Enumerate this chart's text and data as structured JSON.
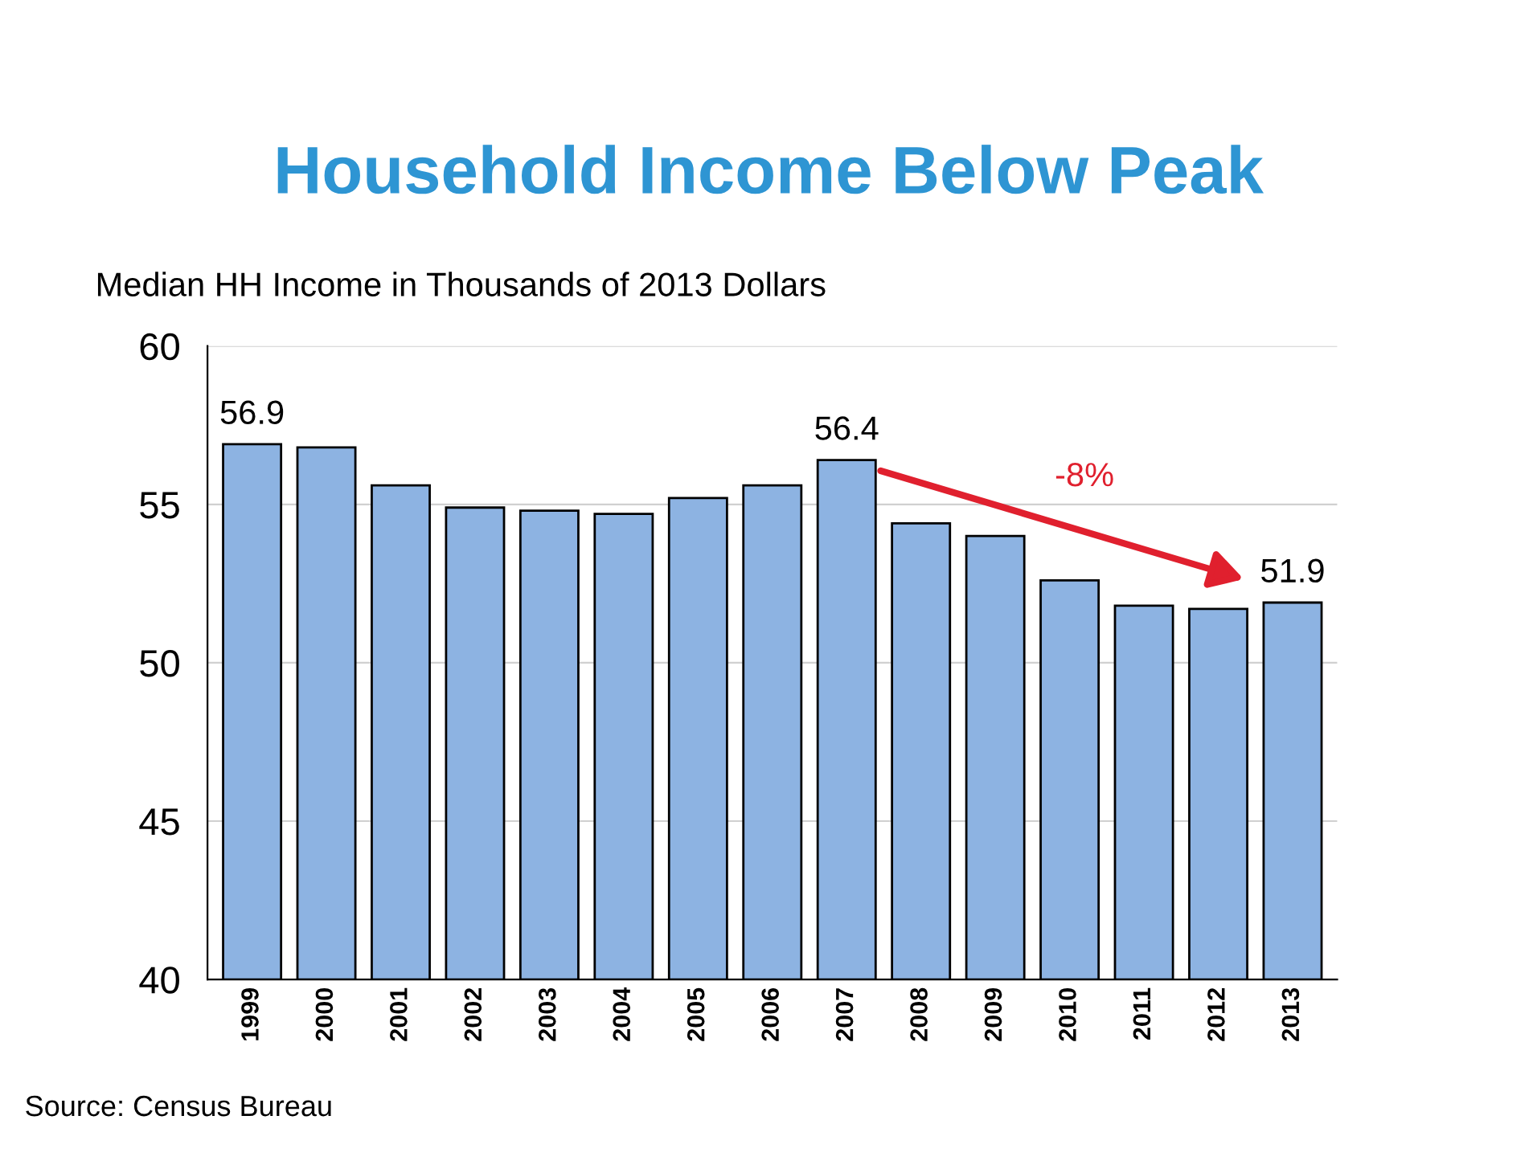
{
  "chart_data": {
    "type": "bar",
    "title": "Household Income Below Peak",
    "ylabel": "Median HH Income in Thousands of 2013 Dollars",
    "categories": [
      "1999",
      "2000",
      "2001",
      "2002",
      "2003",
      "2004",
      "2005",
      "2006",
      "2007",
      "2008",
      "2009",
      "2010",
      "2011",
      "2012",
      "2013"
    ],
    "values": [
      56.9,
      56.8,
      55.6,
      54.9,
      54.8,
      54.7,
      55.2,
      55.6,
      56.4,
      54.4,
      54.0,
      52.6,
      51.8,
      51.7,
      51.9
    ],
    "value_labels": [
      "56.9",
      null,
      null,
      null,
      null,
      null,
      null,
      null,
      "56.4",
      null,
      null,
      null,
      null,
      null,
      "51.9"
    ],
    "color": "#8db3e2",
    "ylim": [
      40,
      60
    ],
    "yticks": [
      40,
      45,
      50,
      55,
      60
    ],
    "grid": "y",
    "annotations": [
      "-8%",
      "Source: Census Bureau"
    ]
  }
}
